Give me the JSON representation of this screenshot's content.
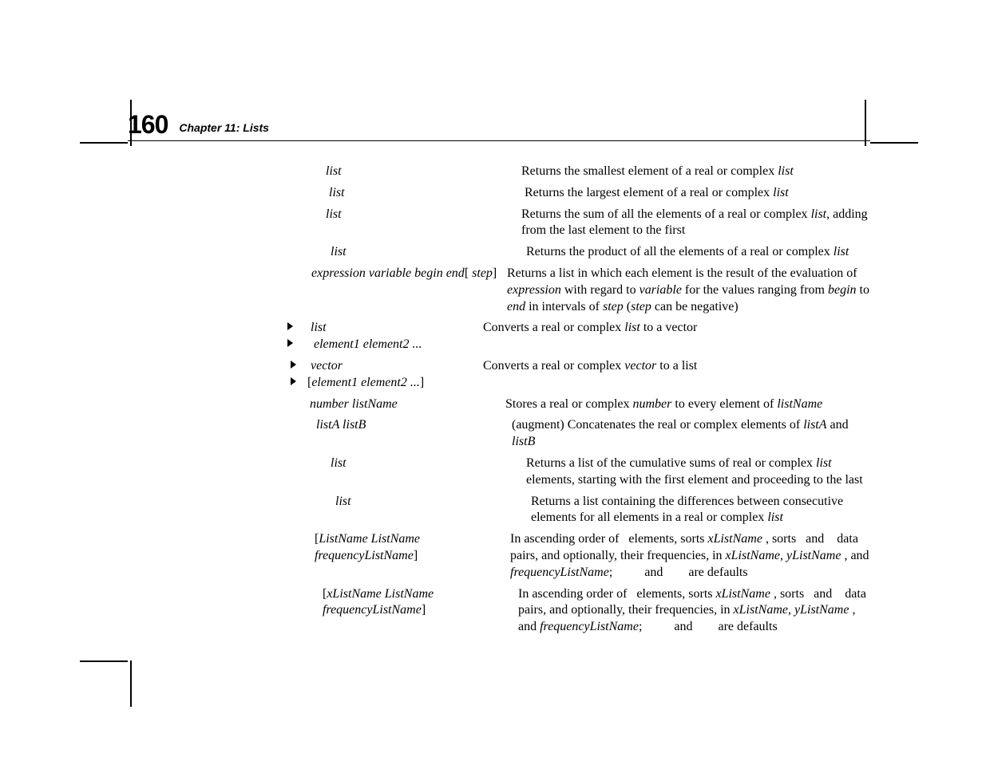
{
  "header": {
    "page_number": "160",
    "chapter_title": "Chapter 11: Lists"
  },
  "entries": [
    {
      "syntax_html": "<span class='ital'>list</span>",
      "desc_html": "Returns the smallest element of a real or complex <span class='ital'>list</span>"
    },
    {
      "syntax_html": "<span class='ital'>list</span>",
      "desc_html": "Returns the largest element of a real or complex <span class='ital'>list</span>"
    },
    {
      "syntax_html": "<span class='ital'>list</span>",
      "desc_html": "Returns the sum of all the elements of a real or complex <span class='ital'>list</span>, adding from the last element to the first"
    },
    {
      "syntax_html": "<span class='ital'>list</span>",
      "desc_html": "Returns the product of all the elements of a real or complex <span class='ital'>list</span>"
    },
    {
      "syntax_html": "<span class='ital'>expression variable begin end</span>[ <span class='ital'>step</span>]",
      "desc_html": "Returns a list in which each element is the result of the evaluation of <span class='ital'>expression</span> with regard to <span class='ital'>variable</span> for the values ranging from <span class='ital'>begin</span> to <span class='ital'>end</span> in intervals of <span class='ital'>step</span> (<span class='ital'>step</span> can be negative)"
    },
    {
      "syntax_html": "<span class='tri'></span>&nbsp;&nbsp;&nbsp;<span class='ital'>list</span><br><span class='tri'></span>&nbsp;&nbsp;&nbsp;&nbsp;<span class='ital'>element1 element2 ...</span>",
      "desc_html": "Converts a real or complex <span class='ital'>list</span> to a vector"
    },
    {
      "syntax_html": "&nbsp;<span class='tri'></span>&nbsp;&nbsp;<span class='ital'>vector</span><br>&nbsp;<span class='tri'></span>&nbsp;[<span class='ital'>element1 element2 ...</span>]",
      "desc_html": "Converts a real or complex <span class='ital'>vector</span> to a list"
    },
    {
      "syntax_html": "<span class='ital'>number listName</span>",
      "desc_html": "Stores a real or complex <span class='ital'>number</span> to every element of <span class='ital'>listName</span>"
    },
    {
      "syntax_html": "<span class='ital'>listA listB</span>",
      "desc_html": "(augment) Concatenates the real or complex elements of <span class='ital'>listA</span> and <span class='ital'>listB</span>"
    },
    {
      "syntax_html": "<span class='ital'>list</span>",
      "desc_html": "Returns a list of the cumulative sums of real or complex <span class='ital'>list</span> elements, starting with the first element and proceeding to the last"
    },
    {
      "syntax_html": "<span class='ital'>list</span>",
      "desc_html": "Returns a list containing the differences between consecutive elements for all elements in a real or complex <span class='ital'>list</span>"
    },
    {
      "syntax_html": "[<span class='ital'>ListName ListName frequencyListName</span>]",
      "desc_html": "In ascending order of&nbsp;&nbsp;&nbsp;elements, sorts <span class='ital'>xListName</span> , sorts&nbsp;&nbsp;&nbsp;and&nbsp;&nbsp;&nbsp; data pairs, and optionally, their frequencies, in <span class='ital'>xListName</span>, <span class='ital'>yListName</span> , and <span class='ital'>frequencyListName</span>;&nbsp;&nbsp;&nbsp;&nbsp;&nbsp;&nbsp;&nbsp;&nbsp;&nbsp;&nbsp;and&nbsp;&nbsp;&nbsp;&nbsp;&nbsp;&nbsp;&nbsp;&nbsp;are defaults"
    },
    {
      "syntax_html": "[<span class='ital'>xListName ListName frequencyListName</span>]",
      "desc_html": "In ascending order of&nbsp;&nbsp;&nbsp;elements, sorts <span class='ital'>xListName</span> , sorts&nbsp;&nbsp;&nbsp;and&nbsp;&nbsp;&nbsp; data pairs, and optionally, their frequencies, in <span class='ital'>xListName</span>, <span class='ital'>yListName</span> , and <span class='ital'>frequencyListName</span>;&nbsp;&nbsp;&nbsp;&nbsp;&nbsp;&nbsp;&nbsp;&nbsp;&nbsp;&nbsp;and&nbsp;&nbsp;&nbsp;&nbsp;&nbsp;&nbsp;&nbsp;&nbsp;are defaults"
    }
  ],
  "syntax_left_pad": [
    48,
    52,
    48,
    54,
    30,
    0,
    0,
    28,
    36,
    54,
    60,
    34,
    44
  ]
}
